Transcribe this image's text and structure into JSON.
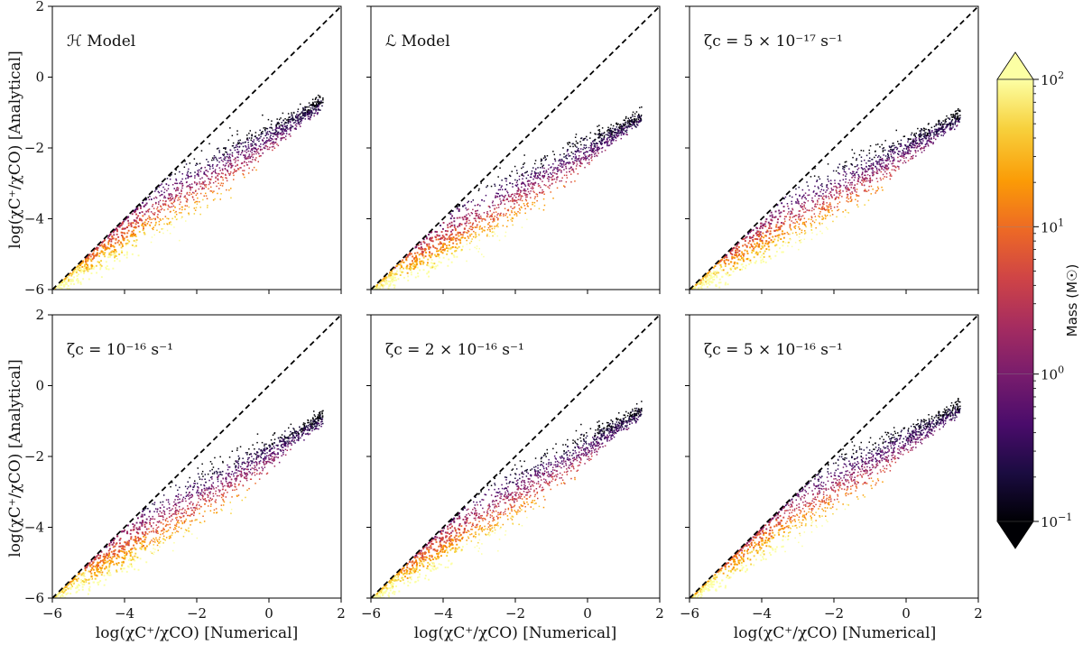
{
  "chart_data": {
    "type": "hexbin",
    "panels": [
      {
        "label": "ℋ Model",
        "row": 0,
        "col": 0,
        "x_from": -6.0,
        "x_to": 1.5,
        "y_from": -6.0,
        "y_to": -0.7,
        "knee_x": -3.3,
        "knee_y": -3.9
      },
      {
        "label": "ℒ Model",
        "row": 0,
        "col": 1,
        "x_from": -6.0,
        "x_to": 1.5,
        "y_from": -6.0,
        "y_to": -1.1,
        "knee_x": -3.6,
        "knee_y": -4.4
      },
      {
        "label": "ζc = 5 × 10⁻¹⁷ s⁻¹",
        "row": 0,
        "col": 2,
        "x_from": -6.0,
        "x_to": 1.5,
        "y_from": -6.0,
        "y_to": -1.1,
        "knee_x": -3.3,
        "knee_y": -4.1
      },
      {
        "label": "ζc = 10⁻¹⁶ s⁻¹",
        "row": 1,
        "col": 0,
        "x_from": -6.0,
        "x_to": 1.5,
        "y_from": -6.0,
        "y_to": -0.9,
        "knee_x": -3.6,
        "knee_y": -4.3
      },
      {
        "label": "ζc = 2 × 10⁻¹⁶ s⁻¹",
        "row": 1,
        "col": 1,
        "x_from": -6.0,
        "x_to": 1.5,
        "y_from": -6.0,
        "y_to": -0.7,
        "knee_x": -3.5,
        "knee_y": -4.1
      },
      {
        "label": "ζc = 5 × 10⁻¹⁶ s⁻¹",
        "row": 1,
        "col": 2,
        "x_from": -6.0,
        "x_to": 1.5,
        "y_from": -6.0,
        "y_to": -0.6,
        "knee_x": -3.2,
        "knee_y": -3.6
      }
    ],
    "reference_line": {
      "style": "dashed",
      "x": [
        -6,
        2
      ],
      "y": [
        -6,
        2
      ],
      "color": "#000000"
    },
    "xlabel": "log(χC⁺/χCO) [Numerical]",
    "ylabel": "log(χC⁺/χCO) [Analytical]",
    "xlim": [
      -6,
      2
    ],
    "ylim": [
      -6,
      2
    ],
    "xticks": [
      "−6",
      "−4",
      "−2",
      "0",
      "2"
    ],
    "yticks": [
      "2",
      "0",
      "−2",
      "−4",
      "−6"
    ],
    "colorbar": {
      "label": "Mass (M☉)",
      "scale": "log",
      "range": [
        0.1,
        100
      ],
      "colormap": "inferno",
      "extend": "both",
      "ticks": [
        {
          "base": "10",
          "exp": "2"
        },
        {
          "base": "10",
          "exp": "1"
        },
        {
          "base": "10",
          "exp": "0"
        },
        {
          "base": "10",
          "exp": "−1"
        }
      ]
    }
  },
  "colors": {
    "inferno": [
      "#000004",
      "#1b0c41",
      "#4a0c6b",
      "#781c6d",
      "#a52c60",
      "#cf4446",
      "#ed6925",
      "#fb9b06",
      "#f7d13d",
      "#fcffa4"
    ]
  }
}
